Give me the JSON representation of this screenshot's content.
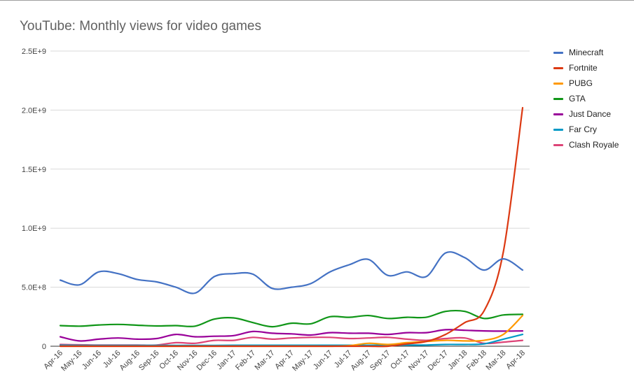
{
  "chart_data": {
    "type": "line",
    "title": "YouTube: Monthly views for video games",
    "xlabel": "",
    "ylabel": "",
    "ylim": [
      0,
      2500000000
    ],
    "yticks": [
      0,
      500000000,
      1000000000,
      1500000000,
      2000000000,
      2500000000
    ],
    "ytick_labels": [
      "0",
      "5.0E+8",
      "1.0E+9",
      "1.5E+9",
      "2.0E+9",
      "2.5E+9"
    ],
    "grid": true,
    "legend_position": "right",
    "categories": [
      "Apr-16",
      "May-16",
      "Jun-16",
      "Jul-16",
      "Aug-16",
      "Sep-16",
      "Oct-16",
      "Nov-16",
      "Dec-16",
      "Jan-17",
      "Feb-17",
      "Mar-17",
      "Apr-17",
      "May-17",
      "Jun-17",
      "Jul-17",
      "Aug-17",
      "Sep-17",
      "Oct-17",
      "Nov-17",
      "Dec-17",
      "Jan-18",
      "Feb-18",
      "Mar-18",
      "Apr-18"
    ],
    "series": [
      {
        "name": "Minecraft",
        "color": "#4472c4",
        "values": [
          560000000,
          520000000,
          630000000,
          615000000,
          565000000,
          545000000,
          500000000,
          450000000,
          590000000,
          615000000,
          610000000,
          490000000,
          500000000,
          530000000,
          630000000,
          690000000,
          735000000,
          600000000,
          630000000,
          590000000,
          790000000,
          750000000,
          645000000,
          740000000,
          645000000
        ]
      },
      {
        "name": "Fortnite",
        "color": "#dc3912",
        "values": [
          0,
          0,
          0,
          0,
          0,
          0,
          0,
          0,
          0,
          0,
          0,
          0,
          0,
          0,
          0,
          0,
          0,
          0,
          20000000,
          40000000,
          100000000,
          200000000,
          300000000,
          800000000,
          2020000000
        ]
      },
      {
        "name": "PUBG",
        "color": "#ff9900",
        "values": [
          0,
          0,
          0,
          0,
          0,
          0,
          0,
          0,
          0,
          0,
          0,
          0,
          0,
          0,
          0,
          5000000,
          25000000,
          15000000,
          30000000,
          40000000,
          50000000,
          45000000,
          50000000,
          100000000,
          260000000
        ]
      },
      {
        "name": "GTA",
        "color": "#109618",
        "values": [
          175000000,
          170000000,
          180000000,
          185000000,
          178000000,
          172000000,
          175000000,
          170000000,
          230000000,
          240000000,
          200000000,
          165000000,
          195000000,
          190000000,
          250000000,
          245000000,
          260000000,
          235000000,
          245000000,
          245000000,
          295000000,
          295000000,
          235000000,
          265000000,
          270000000
        ]
      },
      {
        "name": "Just Dance",
        "color": "#990099",
        "values": [
          80000000,
          45000000,
          60000000,
          70000000,
          60000000,
          65000000,
          100000000,
          80000000,
          85000000,
          90000000,
          125000000,
          110000000,
          105000000,
          95000000,
          115000000,
          110000000,
          110000000,
          100000000,
          115000000,
          115000000,
          140000000,
          135000000,
          130000000,
          128000000,
          130000000
        ]
      },
      {
        "name": "Far Cry",
        "color": "#0099c6",
        "values": [
          8000000,
          7000000,
          7000000,
          7000000,
          7000000,
          7000000,
          7000000,
          7000000,
          7000000,
          8000000,
          8000000,
          8000000,
          8000000,
          8000000,
          8000000,
          8000000,
          8000000,
          10000000,
          10000000,
          10000000,
          15000000,
          15000000,
          20000000,
          60000000,
          100000000
        ]
      },
      {
        "name": "Clash Royale",
        "color": "#dd4477",
        "values": [
          15000000,
          12000000,
          10000000,
          10000000,
          10000000,
          10000000,
          30000000,
          25000000,
          50000000,
          50000000,
          75000000,
          60000000,
          70000000,
          75000000,
          75000000,
          65000000,
          70000000,
          75000000,
          60000000,
          50000000,
          65000000,
          70000000,
          25000000,
          35000000,
          50000000
        ]
      }
    ]
  }
}
